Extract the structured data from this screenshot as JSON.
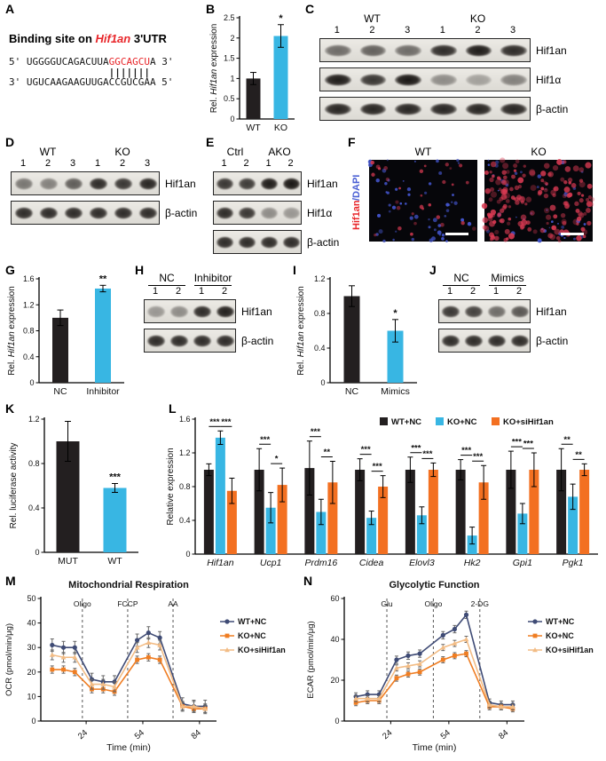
{
  "panels": {
    "A": {
      "label": "A",
      "title_prefix": "Binding site on ",
      "title_gene": "Hif1an",
      "title_suffix": " 3'UTR",
      "seq_top_prefix": "5' UGGGGUCAGACUUA",
      "seq_top_red": "GGCAGCU",
      "seq_top_suffix": "A 3'",
      "pairing": "                 |||||||",
      "seq_bottom": "3' UGUCAAGAAGUUGACCGUCGAA 5'"
    },
    "B": {
      "label": "B",
      "chart": {
        "type": "bar2",
        "ylabel_parts": [
          {
            "t": "Rel. "
          },
          {
            "t": "Hif1an",
            "i": true
          },
          {
            "t": " expression"
          }
        ],
        "ylim": [
          0,
          2.5
        ],
        "yticks": [
          0,
          0.5,
          1,
          1.5,
          2,
          2.5
        ],
        "categories": [
          "WT",
          "KO"
        ],
        "values": [
          1.0,
          2.05
        ],
        "errors": [
          0.15,
          0.28
        ],
        "colors": [
          "#231f20",
          "#38b6e3"
        ],
        "stars": "*",
        "star_cat": 1
      }
    },
    "C": {
      "label": "C",
      "blot": {
        "groups": [
          {
            "label": "WT",
            "lanes": [
              "1",
              "2",
              "3"
            ]
          },
          {
            "label": "KO",
            "lanes": [
              "1",
              "2",
              "3"
            ]
          }
        ],
        "rows": [
          {
            "label": "Hif1an",
            "bands": [
              0.55,
              0.6,
              0.55,
              0.85,
              0.92,
              0.85
            ]
          },
          {
            "label": "Hif1α",
            "bands": [
              0.92,
              0.8,
              0.95,
              0.4,
              0.3,
              0.45
            ]
          },
          {
            "label": "β-actin",
            "bands": [
              0.88,
              0.88,
              0.88,
              0.88,
              0.88,
              0.88
            ]
          }
        ]
      }
    },
    "D": {
      "label": "D",
      "blot": {
        "groups": [
          {
            "label": "WT",
            "lanes": [
              "1",
              "2",
              "3"
            ]
          },
          {
            "label": "KO",
            "lanes": [
              "1",
              "2",
              "3"
            ]
          }
        ],
        "rows": [
          {
            "label": "Hif1an",
            "bands": [
              0.5,
              0.45,
              0.62,
              0.85,
              0.8,
              0.88
            ]
          },
          {
            "label": "β-actin",
            "bands": [
              0.85,
              0.85,
              0.85,
              0.85,
              0.85,
              0.85
            ]
          }
        ]
      }
    },
    "E": {
      "label": "E",
      "blot": {
        "groups": [
          {
            "label": "Ctrl",
            "lanes": [
              "1",
              "2"
            ]
          },
          {
            "label": "AKO",
            "lanes": [
              "1",
              "2"
            ]
          }
        ],
        "rows": [
          {
            "label": "Hif1an",
            "bands": [
              0.8,
              0.78,
              0.92,
              0.95
            ]
          },
          {
            "label": "Hif1α",
            "bands": [
              0.85,
              0.8,
              0.4,
              0.35
            ]
          },
          {
            "label": "β-actin",
            "bands": [
              0.85,
              0.85,
              0.85,
              0.85
            ]
          }
        ]
      }
    },
    "F": {
      "label": "F",
      "ylabel_red": "Hif1an",
      "ylabel_blue": "/DAPI",
      "fluor": {
        "images": [
          {
            "label": "WT",
            "seed": 7,
            "blue_dots": 55,
            "red_dots": 30,
            "red_r": [
              1.2,
              2.4
            ]
          },
          {
            "label": "KO",
            "seed": 13,
            "blue_dots": 45,
            "red_dots": 175,
            "red_r": [
              1.6,
              3.6
            ]
          }
        ]
      }
    },
    "G": {
      "label": "G",
      "chart": {
        "type": "bar2",
        "ylabel_parts": [
          {
            "t": "Rel. "
          },
          {
            "t": "Hif1an",
            "i": true
          },
          {
            "t": " expression"
          }
        ],
        "ylim": [
          0,
          1.6
        ],
        "yticks": [
          0,
          0.4,
          0.8,
          1.2,
          1.6
        ],
        "categories": [
          "NC",
          "Inhibitor"
        ],
        "values": [
          1.0,
          1.45
        ],
        "errors": [
          0.12,
          0.05
        ],
        "colors": [
          "#231f20",
          "#38b6e3"
        ],
        "stars": "**",
        "star_cat": 1
      }
    },
    "H": {
      "label": "H",
      "blot": {
        "underline": true,
        "groups": [
          {
            "label": "NC",
            "lanes": [
              "1",
              "2"
            ]
          },
          {
            "label": "Inhibitor",
            "lanes": [
              "1",
              "2"
            ]
          }
        ],
        "rows": [
          {
            "label": "Hif1an",
            "bands": [
              0.35,
              0.4,
              0.85,
              0.9
            ]
          },
          {
            "label": "β-actin",
            "bands": [
              0.85,
              0.85,
              0.85,
              0.85
            ]
          }
        ]
      }
    },
    "I": {
      "label": "I",
      "chart": {
        "type": "bar2",
        "ylabel_parts": [
          {
            "t": "Rel. "
          },
          {
            "t": "Hif1an",
            "i": true
          },
          {
            "t": " expression"
          }
        ],
        "ylim": [
          0,
          1.2
        ],
        "yticks": [
          0,
          0.4,
          0.8,
          1.2
        ],
        "categories": [
          "NC",
          "Mimics"
        ],
        "values": [
          1.0,
          0.6
        ],
        "errors": [
          0.12,
          0.13
        ],
        "colors": [
          "#231f20",
          "#38b6e3"
        ],
        "stars": "*",
        "star_cat": 1
      }
    },
    "J": {
      "label": "J",
      "blot": {
        "underline": true,
        "groups": [
          {
            "label": "NC",
            "lanes": [
              "1",
              "2"
            ]
          },
          {
            "label": "Mimics",
            "lanes": [
              "1",
              "2"
            ]
          }
        ],
        "rows": [
          {
            "label": "Hif1an",
            "bands": [
              0.8,
              0.75,
              0.55,
              0.65
            ]
          },
          {
            "label": "β-actin",
            "bands": [
              0.85,
              0.85,
              0.85,
              0.85
            ]
          }
        ]
      }
    },
    "K": {
      "label": "K",
      "chart": {
        "type": "bar2",
        "ylabel_parts": [
          {
            "t": "Rel. luciferase activity"
          }
        ],
        "ylim": [
          0,
          1.2
        ],
        "yticks": [
          0,
          0.4,
          0.8,
          1.2
        ],
        "categories": [
          "MUT",
          "WT"
        ],
        "values": [
          1.0,
          0.58
        ],
        "errors": [
          0.18,
          0.04
        ],
        "colors": [
          "#231f20",
          "#38b6e3"
        ],
        "stars": "***",
        "star_cat": 1
      }
    },
    "L": {
      "label": "L",
      "chart": {
        "type": "groupbar",
        "ylabel_parts": [
          {
            "t": "Relative expression"
          }
        ],
        "ylim": [
          0,
          1.6
        ],
        "yticks": [
          0,
          0.4,
          0.8,
          1.2,
          1.6
        ],
        "cat_italic": true,
        "categories": [
          "Hif1an",
          "Ucp1",
          "Prdm16",
          "Cidea",
          "Elovl3",
          "Hk2",
          "Gpi1",
          "Pgk1"
        ],
        "series": [
          {
            "name": "WT+NC",
            "color": "#231f20",
            "values": [
              1.0,
              1.0,
              1.02,
              1.0,
              1.0,
              1.0,
              1.0,
              1.0
            ],
            "errors": [
              0.07,
              0.25,
              0.32,
              0.13,
              0.15,
              0.12,
              0.22,
              0.25
            ]
          },
          {
            "name": "KO+NC",
            "color": "#38b6e3",
            "values": [
              1.38,
              0.55,
              0.5,
              0.43,
              0.46,
              0.22,
              0.48,
              0.68
            ],
            "errors": [
              0.08,
              0.18,
              0.15,
              0.08,
              0.1,
              0.1,
              0.12,
              0.15
            ]
          },
          {
            "name": "KO+siHif1an",
            "color": "#f37021",
            "values": [
              0.75,
              0.82,
              0.85,
              0.8,
              1.0,
              0.85,
              1.0,
              1.0
            ],
            "errors": [
              0.15,
              0.2,
              0.25,
              0.13,
              0.08,
              0.2,
              0.2,
              0.07
            ]
          }
        ],
        "sig": [
          [
            "***",
            "***"
          ],
          [
            "***",
            "*"
          ],
          [
            "***",
            "**"
          ],
          [
            "***",
            "***"
          ],
          [
            "***",
            "***"
          ],
          [
            "***",
            "***"
          ],
          [
            "***",
            "***"
          ],
          [
            "**",
            "**"
          ]
        ]
      }
    },
    "M": {
      "label": "M",
      "chart": {
        "type": "line",
        "title": "Mitochondrial Respiration",
        "xlabel": "Time (min)",
        "ylabel": "OCR (pmol/min/μg)",
        "xlim": [
          0,
          93
        ],
        "xticks": [
          24,
          54,
          84
        ],
        "ylim": [
          0,
          50
        ],
        "yticks": [
          0,
          10,
          20,
          30,
          40,
          50
        ],
        "vlines": [
          {
            "x": 22,
            "label": "Oligo"
          },
          {
            "x": 46,
            "label": "FCCP"
          },
          {
            "x": 70,
            "label": "AA"
          }
        ],
        "x": [
          6,
          12,
          18,
          27,
          33,
          39,
          51,
          57,
          63,
          75,
          81,
          87
        ],
        "series": [
          {
            "name": "WT+NC",
            "color": "#3f4b75",
            "marker": "circle",
            "err": 2.5,
            "values": [
              31,
              30,
              30,
              17,
              16,
              16,
              33,
              36,
              34,
              7,
              6,
              6
            ]
          },
          {
            "name": "KO+NC",
            "color": "#ef7d22",
            "marker": "square",
            "err": 1.5,
            "values": [
              21,
              21,
              20,
              13,
              13,
              12,
              25,
              26,
              25,
              6,
              5,
              5
            ]
          },
          {
            "name": "KO+siHif1an",
            "color": "#f2bc85",
            "marker": "triangle",
            "err": 2.0,
            "values": [
              27,
              26,
              26,
              15,
              15,
              14,
              30,
              32,
              31,
              6,
              6,
              5
            ]
          }
        ]
      }
    },
    "N": {
      "label": "N",
      "chart": {
        "type": "line",
        "title": "Glycolytic Function",
        "xlabel": "Time (min)",
        "ylabel": "ECAR (pmol/min/μg)",
        "xlim": [
          0,
          93
        ],
        "xticks": [
          24,
          54,
          84
        ],
        "ylim": [
          0,
          60
        ],
        "yticks": [
          0,
          20,
          40,
          60
        ],
        "vlines": [
          {
            "x": 22,
            "label": "Glu"
          },
          {
            "x": 46,
            "label": "Oligo"
          },
          {
            "x": 70,
            "label": "2-DG"
          }
        ],
        "x": [
          6,
          12,
          18,
          27,
          33,
          39,
          51,
          57,
          63,
          75,
          81,
          87
        ],
        "series": [
          {
            "name": "WT+NC",
            "color": "#3f4b75",
            "marker": "circle",
            "err": 1.8,
            "values": [
              12,
              13,
              13,
              30,
              32,
              33,
              42,
              45,
              52,
              9,
              8,
              8
            ]
          },
          {
            "name": "KO+NC",
            "color": "#ef7d22",
            "marker": "square",
            "err": 1.5,
            "values": [
              9,
              10,
              10,
              21,
              23,
              24,
              30,
              32,
              33,
              7,
              7,
              6
            ]
          },
          {
            "name": "KO+siHif1an",
            "color": "#f2bc85",
            "marker": "triangle",
            "err": 1.5,
            "values": [
              11,
              11,
              11,
              26,
              27,
              28,
              36,
              38,
              40,
              8,
              7,
              7
            ]
          }
        ]
      }
    }
  }
}
